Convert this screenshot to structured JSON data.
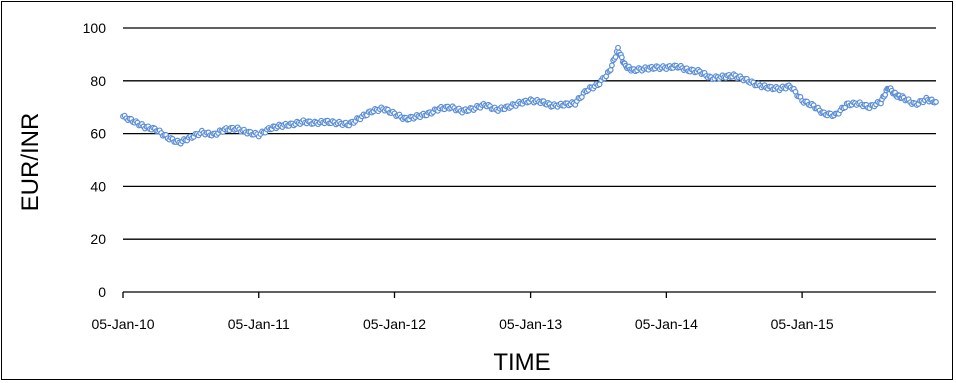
{
  "chart_data": {
    "type": "scatter",
    "title": "",
    "xlabel": "TIME",
    "ylabel": "EUR/INR",
    "ylim": [
      0,
      100
    ],
    "yticks": [
      0,
      20,
      40,
      60,
      80,
      100
    ],
    "xlim": [
      "2010-01-05",
      "2015-12-31"
    ],
    "xticks": [
      "2010-01-05",
      "2011-01-05",
      "2012-01-05",
      "2013-01-05",
      "2014-01-05",
      "2015-01-05"
    ],
    "xtick_labels": [
      "05-Jan-10",
      "05-Jan-11",
      "05-Jan-12",
      "05-Jan-13",
      "05-Jan-14",
      "05-Jan-15"
    ],
    "grid": "horizontal",
    "legend": "none",
    "series": [
      {
        "color": "#5b8ed6",
        "marker": "open-circle",
        "points": [
          [
            "2010-01-05",
            66.5
          ],
          [
            "2010-02-05",
            64.5
          ],
          [
            "2010-03-05",
            62.5
          ],
          [
            "2010-04-05",
            61.5
          ],
          [
            "2010-05-05",
            58.5
          ],
          [
            "2010-06-05",
            56.5
          ],
          [
            "2010-07-05",
            58.5
          ],
          [
            "2010-08-05",
            60.5
          ],
          [
            "2010-09-05",
            59.5
          ],
          [
            "2010-10-05",
            61.5
          ],
          [
            "2010-11-05",
            62.0
          ],
          [
            "2010-12-05",
            60.5
          ],
          [
            "2011-01-05",
            59.5
          ],
          [
            "2011-02-05",
            62.0
          ],
          [
            "2011-03-05",
            63.0
          ],
          [
            "2011-04-05",
            63.5
          ],
          [
            "2011-05-05",
            64.5
          ],
          [
            "2011-06-05",
            64.0
          ],
          [
            "2011-07-05",
            64.5
          ],
          [
            "2011-08-05",
            64.0
          ],
          [
            "2011-09-05",
            63.5
          ],
          [
            "2011-10-05",
            66.0
          ],
          [
            "2011-11-05",
            68.5
          ],
          [
            "2011-12-05",
            69.5
          ],
          [
            "2012-01-05",
            67.5
          ],
          [
            "2012-02-05",
            65.5
          ],
          [
            "2012-03-05",
            66.5
          ],
          [
            "2012-04-05",
            67.5
          ],
          [
            "2012-05-05",
            69.5
          ],
          [
            "2012-06-05",
            70.0
          ],
          [
            "2012-07-05",
            68.5
          ],
          [
            "2012-08-05",
            69.5
          ],
          [
            "2012-09-05",
            71.0
          ],
          [
            "2012-10-05",
            69.0
          ],
          [
            "2012-11-05",
            70.0
          ],
          [
            "2012-12-05",
            71.5
          ],
          [
            "2013-01-05",
            72.5
          ],
          [
            "2013-02-05",
            72.0
          ],
          [
            "2013-03-05",
            70.5
          ],
          [
            "2013-04-05",
            71.0
          ],
          [
            "2013-05-05",
            71.5
          ],
          [
            "2013-06-05",
            76.5
          ],
          [
            "2013-07-05",
            78.5
          ],
          [
            "2013-08-05",
            83.5
          ],
          [
            "2013-08-28",
            92.0
          ],
          [
            "2013-09-15",
            86.0
          ],
          [
            "2013-10-05",
            84.0
          ],
          [
            "2013-11-05",
            84.5
          ],
          [
            "2013-12-05",
            85.0
          ],
          [
            "2014-01-05",
            85.0
          ],
          [
            "2014-02-05",
            85.5
          ],
          [
            "2014-03-05",
            84.0
          ],
          [
            "2014-04-05",
            83.5
          ],
          [
            "2014-05-05",
            81.0
          ],
          [
            "2014-06-05",
            81.5
          ],
          [
            "2014-07-05",
            82.0
          ],
          [
            "2014-08-05",
            80.5
          ],
          [
            "2014-09-05",
            78.5
          ],
          [
            "2014-10-05",
            77.5
          ],
          [
            "2014-11-05",
            77.0
          ],
          [
            "2014-12-05",
            78.0
          ],
          [
            "2015-01-05",
            72.5
          ],
          [
            "2015-02-05",
            70.5
          ],
          [
            "2015-03-05",
            67.5
          ],
          [
            "2015-04-05",
            67.0
          ],
          [
            "2015-05-05",
            71.0
          ],
          [
            "2015-06-05",
            71.5
          ],
          [
            "2015-07-05",
            70.0
          ],
          [
            "2015-08-05",
            72.0
          ],
          [
            "2015-08-25",
            77.5
          ],
          [
            "2015-09-15",
            74.5
          ],
          [
            "2015-10-05",
            73.5
          ],
          [
            "2015-11-05",
            71.0
          ],
          [
            "2015-12-05",
            73.0
          ],
          [
            "2015-12-31",
            72.0
          ]
        ]
      }
    ]
  }
}
